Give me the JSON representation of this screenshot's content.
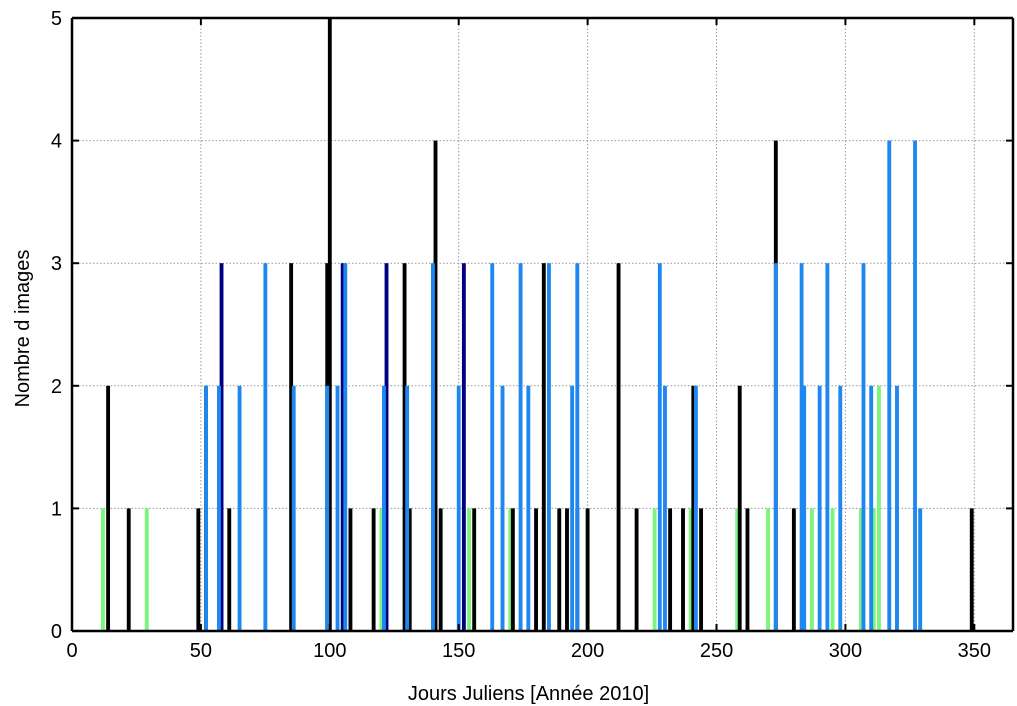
{
  "chart_data": {
    "type": "bar",
    "title": "",
    "xlabel": "Jours Juliens   [Année 2010]",
    "ylabel": "Nombre d images",
    "xlim": [
      0,
      365
    ],
    "ylim": [
      0,
      5
    ],
    "xticks": [
      0,
      50,
      100,
      150,
      200,
      250,
      300,
      350
    ],
    "yticks": [
      0,
      1,
      2,
      3,
      4,
      5
    ],
    "grid": true,
    "legend": "none",
    "bar_width_days": 1.5,
    "series": [
      {
        "color": "#7cf57c",
        "points": [
          [
            12,
            1
          ],
          [
            29,
            1
          ],
          [
            52,
            1
          ],
          [
            75,
            1
          ],
          [
            120,
            1
          ],
          [
            140,
            1
          ],
          [
            154,
            1
          ],
          [
            167,
            1
          ],
          [
            170,
            1
          ],
          [
            226,
            1
          ],
          [
            240,
            1
          ],
          [
            258,
            1
          ],
          [
            270,
            1
          ],
          [
            287,
            1
          ],
          [
            295,
            1
          ],
          [
            306,
            1
          ],
          [
            311,
            1
          ],
          [
            313,
            2
          ],
          [
            320,
            1
          ],
          [
            329,
            1
          ]
        ]
      },
      {
        "color": "#000000",
        "points": [
          [
            14,
            2
          ],
          [
            22,
            1
          ],
          [
            49,
            1
          ],
          [
            52,
            2
          ],
          [
            61,
            1
          ],
          [
            85,
            3
          ],
          [
            100,
            5
          ],
          [
            99,
            3
          ],
          [
            108,
            1
          ],
          [
            117,
            1
          ],
          [
            129,
            3
          ],
          [
            131,
            1
          ],
          [
            141,
            4
          ],
          [
            143,
            1
          ],
          [
            156,
            1
          ],
          [
            171,
            1
          ],
          [
            180,
            1
          ],
          [
            183,
            3
          ],
          [
            189,
            1
          ],
          [
            192,
            1
          ],
          [
            196,
            1
          ],
          [
            200,
            1
          ],
          [
            212,
            3
          ],
          [
            219,
            1
          ],
          [
            232,
            1
          ],
          [
            237,
            1
          ],
          [
            241,
            2
          ],
          [
            244,
            1
          ],
          [
            259,
            2
          ],
          [
            262,
            1
          ],
          [
            273,
            4
          ],
          [
            280,
            1
          ],
          [
            349,
            1
          ]
        ]
      },
      {
        "color": "#000080",
        "points": [
          [
            58,
            3
          ],
          [
            105,
            3
          ],
          [
            122,
            3
          ],
          [
            152,
            3
          ]
        ]
      },
      {
        "color": "#1e88f0",
        "points": [
          [
            52,
            2
          ],
          [
            57,
            2
          ],
          [
            65,
            2
          ],
          [
            75,
            3
          ],
          [
            86,
            2
          ],
          [
            99,
            2
          ],
          [
            103,
            2
          ],
          [
            106,
            3
          ],
          [
            121,
            2
          ],
          [
            130,
            2
          ],
          [
            140,
            3
          ],
          [
            150,
            2
          ],
          [
            163,
            3
          ],
          [
            167,
            2
          ],
          [
            174,
            3
          ],
          [
            177,
            2
          ],
          [
            185,
            3
          ],
          [
            194,
            2
          ],
          [
            196,
            3
          ],
          [
            228,
            3
          ],
          [
            230,
            2
          ],
          [
            242,
            2
          ],
          [
            273,
            3
          ],
          [
            283,
            3
          ],
          [
            284,
            2
          ],
          [
            290,
            2
          ],
          [
            293,
            3
          ],
          [
            298,
            2
          ],
          [
            307,
            3
          ],
          [
            310,
            2
          ],
          [
            317,
            4
          ],
          [
            320,
            2
          ],
          [
            327,
            4
          ],
          [
            329,
            1
          ]
        ]
      }
    ]
  }
}
